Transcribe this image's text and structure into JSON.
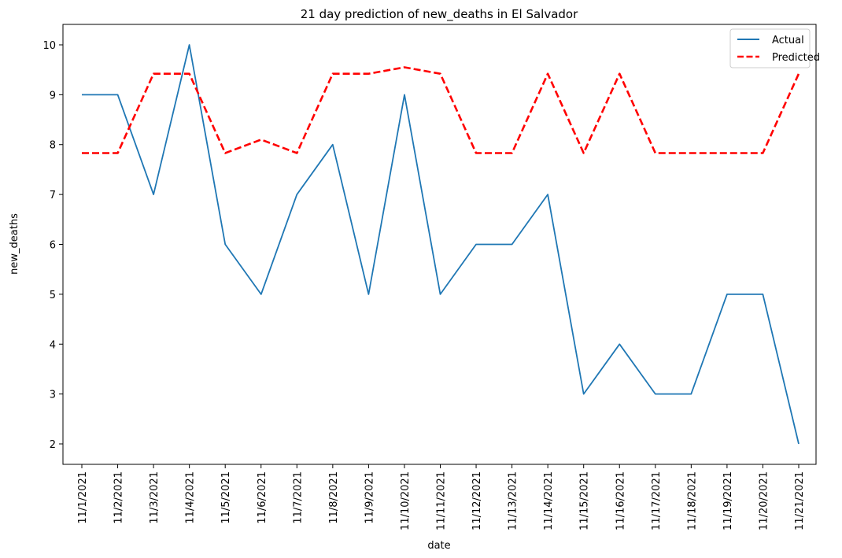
{
  "chart_data": {
    "type": "line",
    "title": "21 day prediction of new_deaths in El Salvador",
    "xlabel": "date",
    "ylabel": "new_deaths",
    "categories": [
      "11/1/2021",
      "11/2/2021",
      "11/3/2021",
      "11/4/2021",
      "11/5/2021",
      "11/6/2021",
      "11/7/2021",
      "11/8/2021",
      "11/9/2021",
      "11/10/2021",
      "11/11/2021",
      "11/12/2021",
      "11/13/2021",
      "11/14/2021",
      "11/15/2021",
      "11/16/2021",
      "11/17/2021",
      "11/18/2021",
      "11/19/2021",
      "11/20/2021",
      "11/21/2021"
    ],
    "yticks": [
      2,
      3,
      4,
      5,
      6,
      7,
      8,
      9,
      10
    ],
    "ylim": [
      1.59,
      10.41
    ],
    "grid": false,
    "legend_position": "top-right",
    "series": [
      {
        "name": "Actual",
        "color": "#1f77b4",
        "style": "solid",
        "values": [
          9,
          9,
          7,
          10,
          6,
          5,
          7,
          8,
          5,
          9,
          5,
          6,
          6,
          7,
          3,
          4,
          3,
          3,
          5,
          5,
          2
        ]
      },
      {
        "name": "Predicted",
        "color": "#ff0000",
        "style": "dashed",
        "values": [
          7.83,
          7.83,
          9.42,
          9.42,
          7.83,
          8.1,
          7.83,
          9.42,
          9.42,
          9.55,
          9.42,
          7.83,
          7.83,
          9.42,
          7.83,
          9.42,
          7.83,
          7.83,
          7.83,
          7.83,
          9.42
        ]
      }
    ]
  }
}
